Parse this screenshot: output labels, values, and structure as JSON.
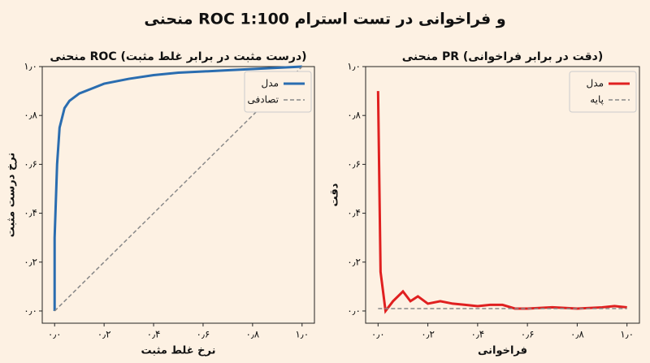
{
  "title": "منحنی ROC و فراخوانی در تست استرام 1:100",
  "chart_data": [
    {
      "type": "line",
      "title": "منحنی ROC (درست مثبت در برابر غلط مثبت)",
      "x_label": "نرخ غلط مثبت",
      "y_label": "نرخ درست مثبت",
      "xlim": [
        -0.05,
        1.05
      ],
      "ylim": [
        -0.05,
        1.0
      ],
      "xticks": [
        {
          "value": 0,
          "label": "۰٫۰"
        },
        {
          "value": 0.2,
          "label": "۰٫۲"
        },
        {
          "value": 0.4,
          "label": "۰٫۴"
        },
        {
          "value": 0.6,
          "label": "۰٫۶"
        },
        {
          "value": 0.8,
          "label": "۰٫۸"
        },
        {
          "value": 1.0,
          "label": "۱٫۰"
        }
      ],
      "yticks": [
        {
          "value": 0,
          "label": "۰٫۰"
        },
        {
          "value": 0.2,
          "label": "۰٫۲"
        },
        {
          "value": 0.4,
          "label": "۰٫۴"
        },
        {
          "value": 0.6,
          "label": "۰٫۶"
        },
        {
          "value": 0.8,
          "label": "۰٫۸"
        },
        {
          "value": 1.0,
          "label": "۱٫۰"
        }
      ],
      "legend": "upper right",
      "series": [
        {
          "name": "مدل",
          "color": "#2a6db0",
          "dashed": false,
          "x": [
            0,
            0,
            0.01,
            0.02,
            0.04,
            0.06,
            0.1,
            0.15,
            0.2,
            0.3,
            0.4,
            0.5,
            0.6,
            0.7,
            0.8,
            0.9,
            1.0
          ],
          "values": [
            0,
            0.3,
            0.6,
            0.75,
            0.83,
            0.86,
            0.89,
            0.91,
            0.93,
            0.95,
            0.965,
            0.975,
            0.98,
            0.985,
            0.99,
            0.995,
            1.0
          ]
        },
        {
          "name": "تصادفی",
          "color": "#888888",
          "dashed": true,
          "x": [
            0,
            1
          ],
          "values": [
            0,
            1
          ]
        }
      ]
    },
    {
      "type": "line",
      "title": "منحنی PR (دقت در برابر فراخوانی)",
      "x_label": "فراخوانی",
      "y_label": "دقت",
      "xlim": [
        -0.05,
        1.05
      ],
      "ylim": [
        -0.05,
        1.0
      ],
      "xticks": [
        {
          "value": 0,
          "label": "۰٫۰"
        },
        {
          "value": 0.2,
          "label": "۰٫۲"
        },
        {
          "value": 0.4,
          "label": "۰٫۴"
        },
        {
          "value": 0.6,
          "label": "۰٫۶"
        },
        {
          "value": 0.8,
          "label": "۰٫۸"
        },
        {
          "value": 1.0,
          "label": "۱٫۰"
        }
      ],
      "yticks": [
        {
          "value": 0,
          "label": "۰٫۰"
        },
        {
          "value": 0.2,
          "label": "۰٫۲"
        },
        {
          "value": 0.4,
          "label": "۰٫۴"
        },
        {
          "value": 0.6,
          "label": "۰٫۶"
        },
        {
          "value": 0.8,
          "label": "۰٫۸"
        },
        {
          "value": 1.0,
          "label": "۱٫۰"
        }
      ],
      "legend": "upper right",
      "series": [
        {
          "name": "مدل",
          "color": "#e02020",
          "dashed": false,
          "x": [
            0,
            0.01,
            0.03,
            0.06,
            0.1,
            0.13,
            0.16,
            0.2,
            0.25,
            0.3,
            0.35,
            0.4,
            0.45,
            0.5,
            0.55,
            0.6,
            0.7,
            0.8,
            0.9,
            0.95,
            1.0
          ],
          "values": [
            0.9,
            0.16,
            0.0,
            0.04,
            0.08,
            0.04,
            0.06,
            0.03,
            0.04,
            0.03,
            0.025,
            0.02,
            0.025,
            0.025,
            0.01,
            0.01,
            0.015,
            0.01,
            0.015,
            0.02,
            0.015
          ]
        },
        {
          "name": "پایه",
          "color": "#888888",
          "dashed": true,
          "x": [
            0,
            1
          ],
          "values": [
            0.01,
            0.01
          ]
        }
      ]
    }
  ]
}
